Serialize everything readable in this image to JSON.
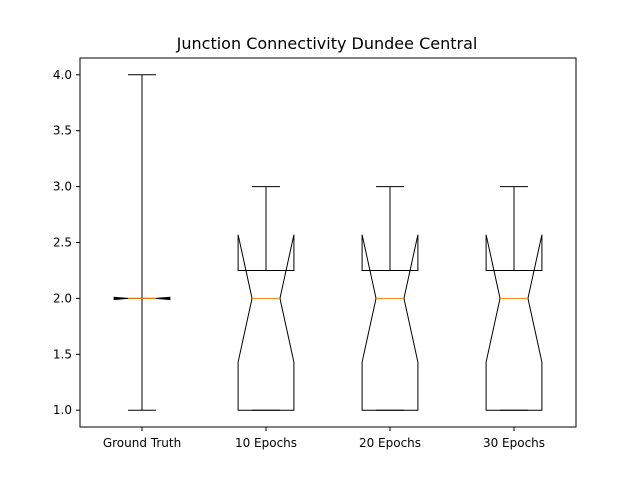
{
  "chart_data": {
    "type": "box",
    "title": "Junction Connectivity Dundee Central",
    "xlabel": "",
    "ylabel": "",
    "ylim": [
      0.85,
      4.15
    ],
    "y_ticks": [
      "1.0",
      "1.5",
      "2.0",
      "2.5",
      "3.0",
      "3.5",
      "4.0"
    ],
    "y_tick_values": [
      1.0,
      1.5,
      2.0,
      2.5,
      3.0,
      3.5,
      4.0
    ],
    "notched": true,
    "categories": [
      "Ground Truth",
      "10 Epochs",
      "20 Epochs",
      "30 Epochs"
    ],
    "boxes": [
      {
        "category": "Ground Truth",
        "whisker_low": 1.0,
        "q1": 2.0,
        "median": 2.0,
        "q3": 2.0,
        "whisker_high": 4.0,
        "notch_low": 1.99,
        "notch_high": 2.01
      },
      {
        "category": "10 Epochs",
        "whisker_low": 1.0,
        "q1": 1.0,
        "median": 2.0,
        "q3": 2.25,
        "whisker_high": 3.0,
        "notch_low": 1.43,
        "notch_high": 2.57
      },
      {
        "category": "20 Epochs",
        "whisker_low": 1.0,
        "q1": 1.0,
        "median": 2.0,
        "q3": 2.25,
        "whisker_high": 3.0,
        "notch_low": 1.43,
        "notch_high": 2.57
      },
      {
        "category": "30 Epochs",
        "whisker_low": 1.0,
        "q1": 1.0,
        "median": 2.0,
        "q3": 2.25,
        "whisker_high": 3.0,
        "notch_low": 1.43,
        "notch_high": 2.57
      }
    ],
    "colors": {
      "box": "#000000",
      "median": "#ff7f0e",
      "axes": "#000000"
    },
    "grid": false,
    "legend": "none"
  }
}
